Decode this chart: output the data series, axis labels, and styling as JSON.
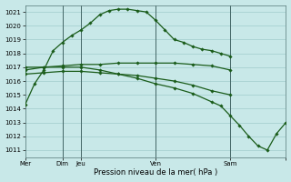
{
  "bg_color": "#c8e8e8",
  "grid_color": "#a0cccc",
  "line_color": "#1a5c1a",
  "marker_color": "#1a5c1a",
  "xlabel": "Pression niveau de la mer( hPa )",
  "ylim": [
    1010.5,
    1021.5
  ],
  "yticks": [
    1011,
    1012,
    1013,
    1014,
    1015,
    1016,
    1017,
    1018,
    1019,
    1020,
    1021
  ],
  "series1": {
    "x": [
      0,
      0.5,
      1,
      1.5,
      2,
      2.5,
      3,
      3.5,
      4,
      4.5,
      5,
      5.5,
      6,
      6.5,
      7,
      7.5,
      8,
      8.5,
      9,
      9.5,
      10,
      10.5,
      11
    ],
    "y": [
      1014.3,
      1015.8,
      1016.8,
      1018.2,
      1018.8,
      1019.3,
      1019.7,
      1020.2,
      1020.8,
      1021.1,
      1021.2,
      1021.2,
      1021.1,
      1021.0,
      1020.4,
      1019.7,
      1019.0,
      1018.8,
      1018.5,
      1018.3,
      1018.2,
      1018.0,
      1017.8
    ]
  },
  "series2": {
    "x": [
      0,
      1,
      2,
      3,
      4,
      5,
      6,
      7,
      8,
      9,
      10,
      11
    ],
    "y": [
      1016.8,
      1017.0,
      1017.1,
      1017.2,
      1017.2,
      1017.3,
      1017.3,
      1017.3,
      1017.3,
      1017.2,
      1017.1,
      1016.8
    ]
  },
  "series3": {
    "x": [
      0,
      1,
      2,
      3,
      4,
      5,
      6,
      7,
      8,
      9,
      10,
      11
    ],
    "y": [
      1016.5,
      1016.6,
      1016.7,
      1016.7,
      1016.6,
      1016.5,
      1016.4,
      1016.2,
      1016.0,
      1015.7,
      1015.3,
      1015.0
    ]
  },
  "series4": {
    "x": [
      0,
      1,
      2,
      3,
      4,
      5,
      6,
      7,
      8,
      9,
      10,
      10.5,
      11,
      11.5,
      12,
      12.5,
      13,
      13.5,
      14
    ],
    "y": [
      1017.0,
      1017.0,
      1017.0,
      1017.0,
      1016.8,
      1016.5,
      1016.2,
      1015.8,
      1015.5,
      1015.1,
      1014.5,
      1014.2,
      1013.5,
      1012.8,
      1012.0,
      1011.3,
      1011.0,
      1012.2,
      1013.0
    ]
  },
  "vline_positions": [
    2.0,
    3.0,
    7.0,
    11.0
  ],
  "xtick_positions": [
    0,
    2.0,
    3.0,
    7.0,
    11.0,
    14.0
  ],
  "xtick_labels": [
    "Mer",
    "Dim",
    "Jeu",
    "Ven",
    "Sam",
    ""
  ],
  "xmin": 0,
  "xmax": 14
}
